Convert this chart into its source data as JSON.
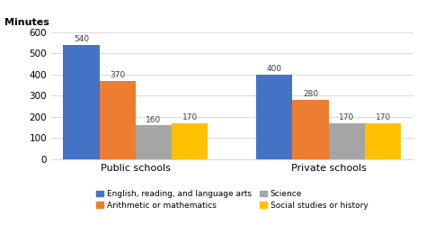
{
  "groups": [
    "Public schools",
    "Private schools"
  ],
  "categories": [
    "English, reading, and language arts",
    "Arithmetic or mathematics",
    "Science",
    "Social studies or history"
  ],
  "values": {
    "Public schools": [
      540,
      370,
      160,
      170
    ],
    "Private schools": [
      400,
      280,
      170,
      170
    ]
  },
  "bar_colors": [
    "#4472c4",
    "#ed7d31",
    "#a5a5a5",
    "#ffc000"
  ],
  "ylabel": "Minutes",
  "ylim": [
    0,
    620
  ],
  "yticks": [
    0,
    100,
    200,
    300,
    400,
    500,
    600
  ],
  "background_color": "#ffffff",
  "grid_color": "#d9d9d9",
  "legend_labels": [
    "English, reading, and language arts",
    "Arithmetic or mathematics",
    "Science",
    "Social studies or history"
  ],
  "bar_width": 0.15,
  "group_positions": [
    0.35,
    1.15
  ]
}
